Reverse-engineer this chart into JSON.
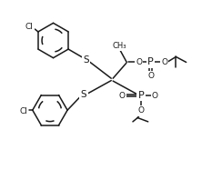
{
  "bg_color": "#ffffff",
  "line_color": "#1a1a1a",
  "line_width": 1.1,
  "font_size": 6.5,
  "figsize": [
    2.44,
    1.98
  ],
  "dpi": 100,
  "xlim": [
    0,
    10
  ],
  "ylim": [
    0,
    8.15
  ]
}
